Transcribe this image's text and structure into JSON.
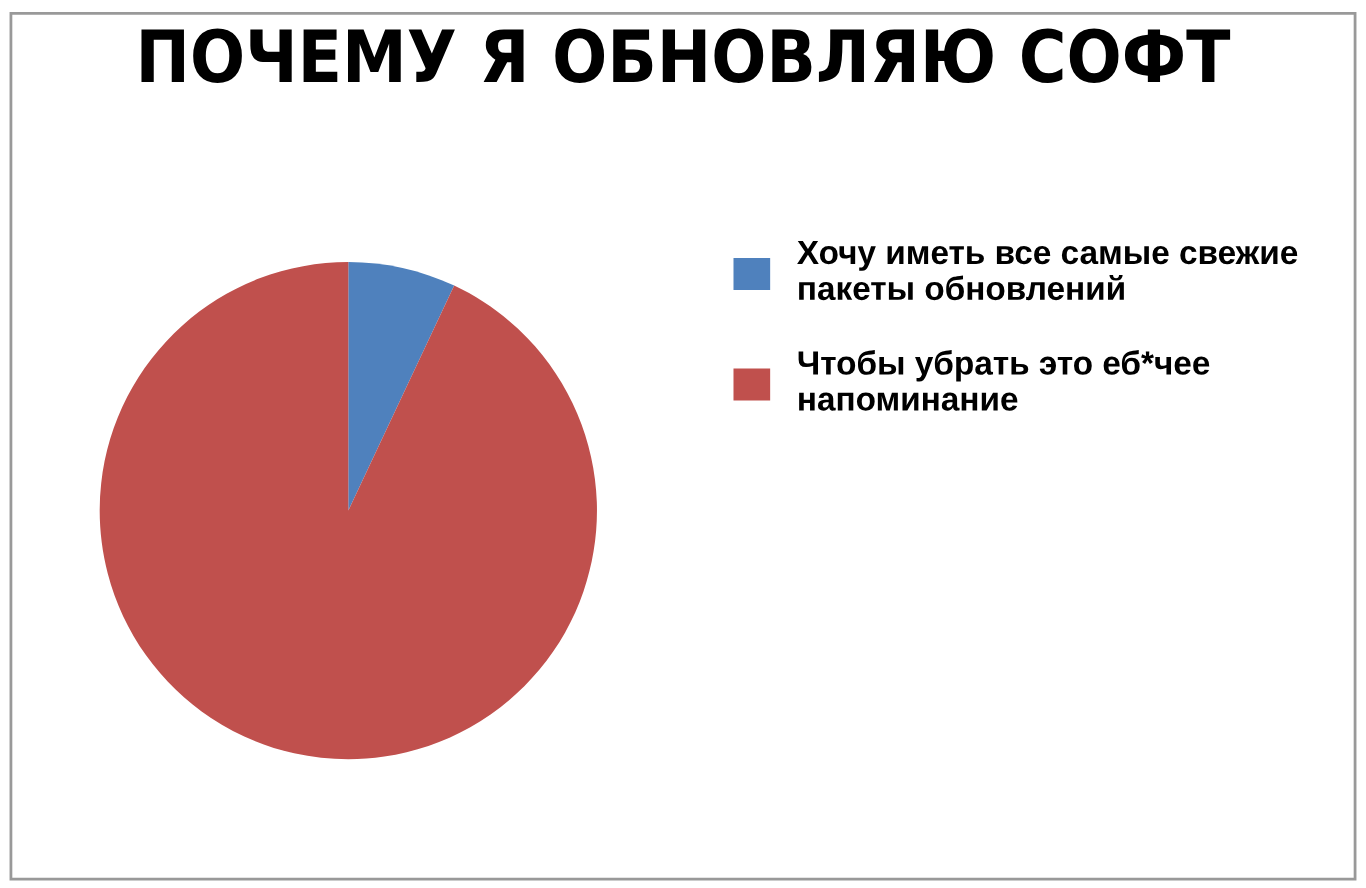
{
  "chart_data": {
    "type": "pie",
    "title": "ПОЧЕМУ Я ОБНОВЛЯЮ СОФТ",
    "categories": [
      "Хочу иметь все самые свежие пакеты обновлений",
      "Чтобы убрать это еб*чее напоминание"
    ],
    "values": [
      7,
      93
    ],
    "colors": [
      "#4f81bd",
      "#c0504d"
    ],
    "legend": "right"
  }
}
